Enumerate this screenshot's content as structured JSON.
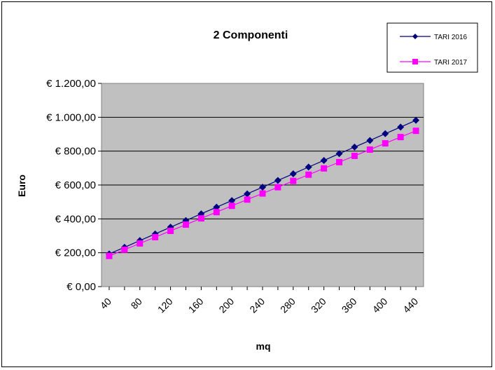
{
  "chart_data": {
    "type": "line",
    "title": "2 Componenti",
    "xlabel": "mq",
    "ylabel": "Euro",
    "x": [
      40,
      60,
      80,
      100,
      120,
      140,
      160,
      180,
      200,
      220,
      240,
      260,
      280,
      300,
      320,
      340,
      360,
      380,
      400,
      420,
      440
    ],
    "x_tick_labels": [
      "40",
      "80",
      "120",
      "160",
      "200",
      "240",
      "280",
      "320",
      "360",
      "400",
      "440"
    ],
    "y_tick_labels": [
      "€ 0,00",
      "€ 200,00",
      "€ 400,00",
      "€ 600,00",
      "€ 800,00",
      "€ 1.000,00",
      "€ 1.200,00"
    ],
    "ylim": [
      0,
      1200
    ],
    "y_ticks": [
      0,
      200,
      400,
      600,
      800,
      1000,
      1200
    ],
    "grid": true,
    "legend_position": "top-right",
    "series": [
      {
        "name": "TARI 2016",
        "color": "#000080",
        "marker": "diamond",
        "values": [
          193,
          232,
          272,
          311,
          351,
          390,
          430,
          469,
          508,
          548,
          587,
          627,
          666,
          706,
          745,
          785,
          824,
          863,
          903,
          942,
          982
        ]
      },
      {
        "name": "TARI 2017",
        "color": "#FF00FF",
        "marker": "square",
        "values": [
          181,
          218,
          255,
          292,
          329,
          366,
          403,
          440,
          477,
          514,
          550,
          587,
          624,
          661,
          698,
          735,
          772,
          809,
          846,
          883,
          920
        ]
      }
    ]
  }
}
